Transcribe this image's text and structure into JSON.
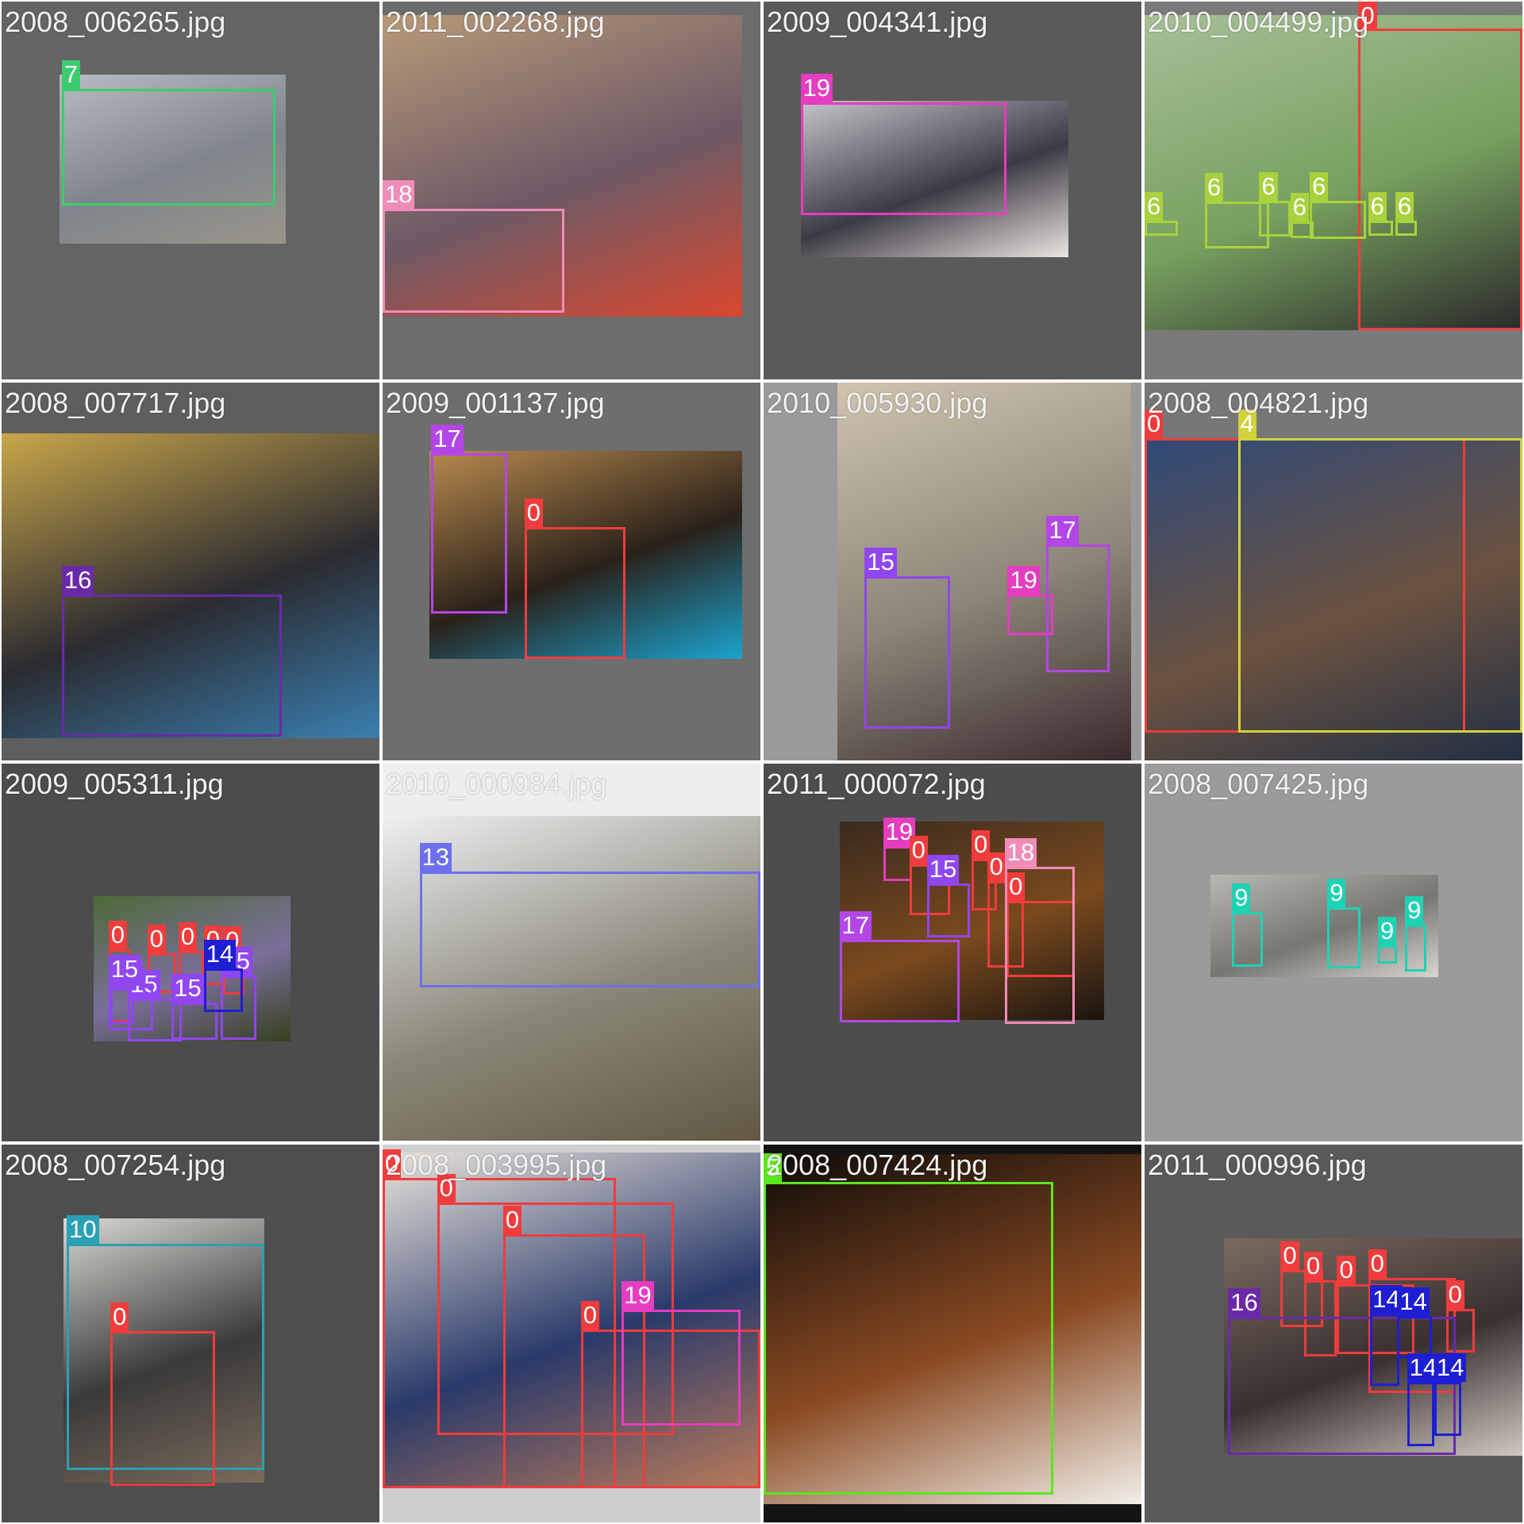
{
  "tiles": [
    {
      "filename": "2008_006265.jpg",
      "background": "#646464",
      "photo_colors": [
        "#b8bcc2",
        "#7f858c",
        "#9a958a"
      ],
      "boxes": [
        {
          "label": "7",
          "color": "#3ccc6e"
        }
      ]
    },
    {
      "filename": "2011_002268.jpg",
      "background": "#6c6c6c",
      "photo_colors": [
        "#b89a78",
        "#6d5a66",
        "#d9472f"
      ],
      "boxes": [
        {
          "label": "18",
          "color": "#f08cb8"
        }
      ]
    },
    {
      "filename": "2009_004341.jpg",
      "background": "#5a5a5a",
      "photo_colors": [
        "#c8c4cc",
        "#3e3a44",
        "#e9e6e2"
      ],
      "boxes": [
        {
          "label": "19",
          "color": "#e63cc0"
        }
      ]
    },
    {
      "filename": "2010_004499.jpg",
      "background": "#7a7a7a",
      "photo_colors": [
        "#a7bf97",
        "#77a05f",
        "#2a2a2a"
      ],
      "boxes": [
        {
          "label": "0",
          "color": "#f03c3c"
        },
        {
          "label": "6",
          "color": "#a8d23c"
        },
        {
          "label": "6",
          "color": "#a8d23c"
        },
        {
          "label": "6",
          "color": "#a8d23c"
        },
        {
          "label": "6",
          "color": "#a8d23c"
        },
        {
          "label": "6",
          "color": "#a8d23c"
        },
        {
          "label": "6",
          "color": "#a8d23c"
        },
        {
          "label": "6",
          "color": "#a8d23c"
        }
      ]
    },
    {
      "filename": "2008_007717.jpg",
      "background": "#5e5e5e",
      "photo_colors": [
        "#c9a64a",
        "#2b2b30",
        "#3a7fb0"
      ],
      "boxes": [
        {
          "label": "16",
          "color": "#6a2aa8"
        }
      ]
    },
    {
      "filename": "2009_001137.jpg",
      "background": "#6e6e6e",
      "photo_colors": [
        "#b88a4e",
        "#2a211a",
        "#1aa3cf"
      ],
      "boxes": [
        {
          "label": "17",
          "color": "#b446e8"
        },
        {
          "label": "0",
          "color": "#f03c3c"
        }
      ]
    },
    {
      "filename": "2010_005930.jpg",
      "background": "#9a9a9a",
      "photo_colors": [
        "#cfc4b0",
        "#8d8578",
        "#3a2a2e"
      ],
      "boxes": [
        {
          "label": "15",
          "color": "#9046f0"
        },
        {
          "label": "19",
          "color": "#e63cc0"
        },
        {
          "label": "17",
          "color": "#b446e8"
        }
      ]
    },
    {
      "filename": "2008_004821.jpg",
      "background": "#777777",
      "photo_colors": [
        "#304a78",
        "#6a5240",
        "#233044"
      ],
      "boxes": [
        {
          "label": "0",
          "color": "#f03c3c"
        },
        {
          "label": "4",
          "color": "#d2d23c"
        }
      ]
    },
    {
      "filename": "2009_005311.jpg",
      "background": "#4c4c4c",
      "photo_colors": [
        "#4e6a38",
        "#7a6f9a",
        "#36401f"
      ],
      "boxes": [
        {
          "label": "0",
          "color": "#f03c3c"
        },
        {
          "label": "0",
          "color": "#f03c3c"
        },
        {
          "label": "0",
          "color": "#f03c3c"
        },
        {
          "label": "0",
          "color": "#f03c3c"
        },
        {
          "label": "0",
          "color": "#f03c3c"
        },
        {
          "label": "15",
          "color": "#9046f0"
        },
        {
          "label": "15",
          "color": "#9046f0"
        },
        {
          "label": "15",
          "color": "#9046f0"
        },
        {
          "label": "15",
          "color": "#9046f0"
        },
        {
          "label": "15",
          "color": "#9046f0"
        },
        {
          "label": "14",
          "color": "#1e1ed2"
        }
      ]
    },
    {
      "filename": "2010_000984.jpg",
      "background": "#eeeeee",
      "photo_colors": [
        "#eef0f2",
        "#8a8778",
        "#625844"
      ],
      "boxes": [
        {
          "label": "13",
          "color": "#6e6ef0"
        }
      ]
    },
    {
      "filename": "2011_000072.jpg",
      "background": "#4d4d4d",
      "photo_colors": [
        "#3a2a1e",
        "#7a4a1e",
        "#1a1410"
      ],
      "boxes": [
        {
          "label": "19",
          "color": "#e63cc0"
        },
        {
          "label": "0",
          "color": "#f03c3c"
        },
        {
          "label": "15",
          "color": "#9046f0"
        },
        {
          "label": "0",
          "color": "#f03c3c"
        },
        {
          "label": "0",
          "color": "#f03c3c"
        },
        {
          "label": "0",
          "color": "#f03c3c"
        },
        {
          "label": "18",
          "color": "#f08cb8"
        },
        {
          "label": "17",
          "color": "#b446e8"
        }
      ]
    },
    {
      "filename": "2008_007425.jpg",
      "background": "#9b9b9b",
      "photo_colors": [
        "#b9b8b3",
        "#777672",
        "#d9d6cf"
      ],
      "boxes": [
        {
          "label": "9",
          "color": "#1ed2b4"
        },
        {
          "label": "9",
          "color": "#1ed2b4"
        },
        {
          "label": "9",
          "color": "#1ed2b4"
        },
        {
          "label": "9",
          "color": "#1ed2b4"
        }
      ]
    },
    {
      "filename": "2008_007254.jpg",
      "background": "#4e4e4e",
      "photo_colors": [
        "#d8d8d4",
        "#3a3a3a",
        "#7a6a5a"
      ],
      "boxes": [
        {
          "label": "10",
          "color": "#2aa0b4"
        },
        {
          "label": "0",
          "color": "#f03c3c"
        }
      ]
    },
    {
      "filename": "2008_003995.jpg",
      "background": "#cfcfcf",
      "photo_colors": [
        "#e9e4dc",
        "#2a3a6a",
        "#b87a5a"
      ],
      "boxes": [
        {
          "label": "0",
          "color": "#f03c3c"
        },
        {
          "label": "0",
          "color": "#f03c3c"
        },
        {
          "label": "0",
          "color": "#f03c3c"
        },
        {
          "label": "0",
          "color": "#f03c3c"
        },
        {
          "label": "19",
          "color": "#e63cc0"
        }
      ]
    },
    {
      "filename": "2008_007424.jpg",
      "background": "#141414",
      "photo_colors": [
        "#0e0b09",
        "#8a4a22",
        "#f2efe9"
      ],
      "boxes": [
        {
          "label": "5",
          "color": "#5ae61e"
        }
      ]
    },
    {
      "filename": "2011_000996.jpg",
      "background": "#5a5a5a",
      "photo_colors": [
        "#7a6a60",
        "#3a3030",
        "#cfc8c0"
      ],
      "boxes": [
        {
          "label": "0",
          "color": "#f03c3c"
        },
        {
          "label": "0",
          "color": "#f03c3c"
        },
        {
          "label": "0",
          "color": "#f03c3c"
        },
        {
          "label": "0",
          "color": "#f03c3c"
        },
        {
          "label": "0",
          "color": "#f03c3c"
        },
        {
          "label": "16",
          "color": "#6a2aa8"
        },
        {
          "label": "14",
          "color": "#1e1ed2"
        },
        {
          "label": "14",
          "color": "#1e1ed2"
        },
        {
          "label": "14",
          "color": "#1e1ed2"
        },
        {
          "label": "14",
          "color": "#1e1ed2"
        }
      ]
    }
  ]
}
